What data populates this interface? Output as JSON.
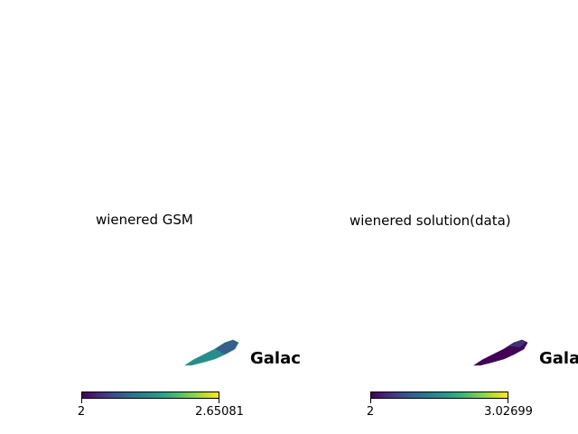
{
  "chart_data": [
    {
      "type": "heatmap",
      "title": "wienered GSM",
      "projection_label": "Galac",
      "colormap": "viridis",
      "colorbar": {
        "min": 2,
        "max": 2.65081,
        "tick_labels": [
          "2",
          "2.65081"
        ]
      },
      "map_fill": "#2a8c8a",
      "map_fill_edge": "#3b528b"
    },
    {
      "type": "heatmap",
      "title": "wienered solution(data)",
      "projection_label": "Gala",
      "colormap": "viridis",
      "colorbar": {
        "min": 2,
        "max": 3.02699,
        "tick_labels": [
          "2",
          "3.02699"
        ]
      },
      "map_fill": "#440154",
      "map_fill_edge": "#3b528b"
    }
  ]
}
